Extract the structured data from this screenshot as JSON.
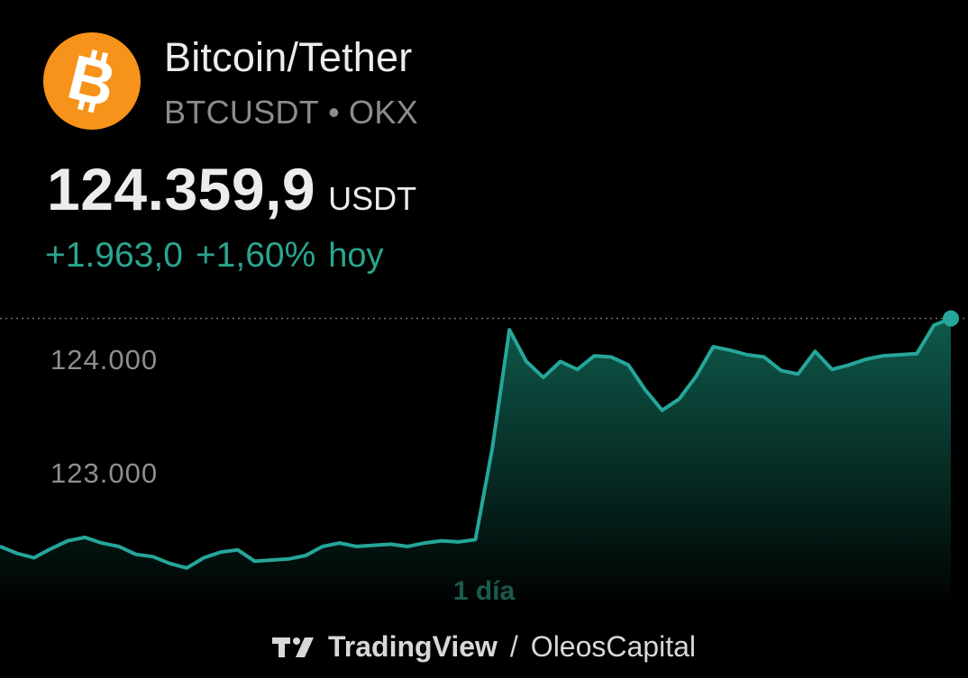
{
  "asset": {
    "name": "Bitcoin/Tether",
    "symbol": "BTCUSDT",
    "separator": "•",
    "exchange": "OKX",
    "logo_icon": "bitcoin-icon",
    "logo_color": "#f7931a"
  },
  "quote": {
    "price": "124.359,9",
    "currency": "USDT",
    "change_abs": "+1.963,0",
    "change_pct": "+1,60%",
    "change_period": "hoy",
    "change_color": "#2aa68f"
  },
  "chart_data": {
    "type": "area",
    "period_label": "1 día",
    "line_color": "#26a69a",
    "y_ticks": [
      {
        "value": 124000,
        "label": "124.000"
      },
      {
        "value": 123000,
        "label": "123.000"
      }
    ],
    "last_value": 124359.9,
    "grid": false,
    "values": [
      122350,
      122290,
      122250,
      122330,
      122400,
      122430,
      122380,
      122350,
      122280,
      122260,
      122200,
      122160,
      122250,
      122300,
      122320,
      122220,
      122230,
      122240,
      122270,
      122350,
      122380,
      122350,
      122360,
      122370,
      122350,
      122380,
      122400,
      122390,
      122410,
      123220,
      124260,
      123980,
      123840,
      123980,
      123910,
      124030,
      124020,
      123950,
      123730,
      123550,
      123650,
      123850,
      124110,
      124080,
      124040,
      124020,
      123900,
      123870,
      124070,
      123910,
      123950,
      124000,
      124030,
      124040,
      124050,
      124300,
      124359.9
    ]
  },
  "footer": {
    "brand": "TradingView",
    "separator": "/",
    "author": "OleosCapital",
    "brand_icon": "tradingview-logo-icon"
  }
}
